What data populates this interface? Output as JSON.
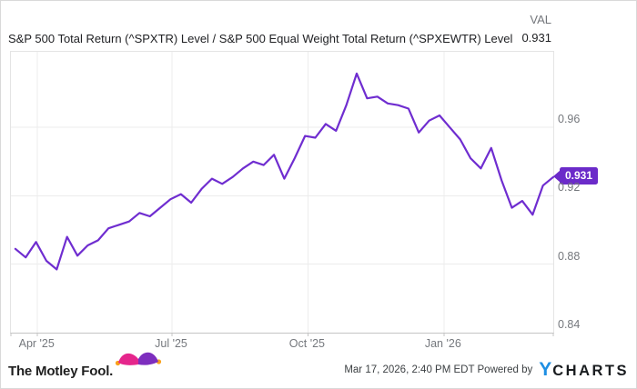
{
  "header": {
    "title": "S&P 500 Total Return (^SPXTR) Level / S&P 500 Equal Weight Total Return (^SPXEWTR) Level",
    "val_label": "VAL",
    "val_value": "0.931"
  },
  "chart_data": {
    "type": "line",
    "title": "S&P 500 Total Return (^SPXTR) Level / S&P 500 Equal Weight Total Return (^SPXEWTR) Level",
    "x_domain": [
      "2025-03-14",
      "2026-03-16"
    ],
    "ylim": [
      0.84,
      1.0042
    ],
    "yticks": [
      {
        "label": "0.96",
        "value": 0.96
      },
      {
        "label": "0.92",
        "value": 0.92
      },
      {
        "label": "0.88",
        "value": 0.88
      },
      {
        "label": "0.84",
        "value": 0.84
      }
    ],
    "xticks": [
      {
        "label": "Apr '25",
        "date": "2025-04-01"
      },
      {
        "label": "Jul '25",
        "date": "2025-07-01"
      },
      {
        "label": "Oct '25",
        "date": "2025-10-01"
      },
      {
        "label": "Jan '26",
        "date": "2026-01-01"
      }
    ],
    "grid": true,
    "legend_position": "none",
    "line_color": "#6f2dd0",
    "last_value": 0.931,
    "series": [
      {
        "name": "^SPXTR / ^SPXEWTR ratio",
        "x": [
          "2025-03-17",
          "2025-03-24",
          "2025-03-31",
          "2025-04-07",
          "2025-04-14",
          "2025-04-21",
          "2025-04-28",
          "2025-05-05",
          "2025-05-12",
          "2025-05-19",
          "2025-05-26",
          "2025-06-02",
          "2025-06-09",
          "2025-06-16",
          "2025-06-23",
          "2025-06-30",
          "2025-07-07",
          "2025-07-14",
          "2025-07-21",
          "2025-07-28",
          "2025-08-04",
          "2025-08-11",
          "2025-08-18",
          "2025-08-25",
          "2025-09-01",
          "2025-09-08",
          "2025-09-15",
          "2025-09-22",
          "2025-09-29",
          "2025-10-06",
          "2025-10-13",
          "2025-10-20",
          "2025-10-27",
          "2025-11-03",
          "2025-11-10",
          "2025-11-17",
          "2025-11-24",
          "2025-12-01",
          "2025-12-08",
          "2025-12-15",
          "2025-12-22",
          "2025-12-29",
          "2026-01-05",
          "2026-01-12",
          "2026-01-19",
          "2026-01-26",
          "2026-02-02",
          "2026-02-09",
          "2026-02-16",
          "2026-02-23",
          "2026-03-02",
          "2026-03-09",
          "2026-03-16"
        ],
        "values": [
          0.889,
          0.884,
          0.893,
          0.882,
          0.877,
          0.896,
          0.885,
          0.891,
          0.894,
          0.901,
          0.903,
          0.905,
          0.91,
          0.908,
          0.913,
          0.918,
          0.921,
          0.916,
          0.924,
          0.93,
          0.927,
          0.931,
          0.936,
          0.94,
          0.938,
          0.944,
          0.93,
          0.942,
          0.955,
          0.954,
          0.962,
          0.958,
          0.973,
          0.9915,
          0.977,
          0.978,
          0.974,
          0.973,
          0.971,
          0.957,
          0.964,
          0.967,
          0.96,
          0.953,
          0.942,
          0.936,
          0.948,
          0.929,
          0.913,
          0.917,
          0.909,
          0.926,
          0.931
        ]
      }
    ]
  },
  "footer": {
    "brand": "The Motley Fool.",
    "timestamp": "Mar 17, 2026, 2:40 PM EDT",
    "powered_by": "Powered by",
    "ycharts_y": "Y",
    "ycharts_rest": "CHARTS"
  },
  "colors": {
    "line_purple": "#6f2dd0",
    "badge_purple": "#6b2bc9",
    "gridline": "#ececec",
    "axis_text": "#75787d",
    "ycharts_blue": "#1e8fe3",
    "fool_pink": "#e5268c",
    "fool_purple": "#7d2ebe",
    "fool_gold": "#f9a11b"
  }
}
